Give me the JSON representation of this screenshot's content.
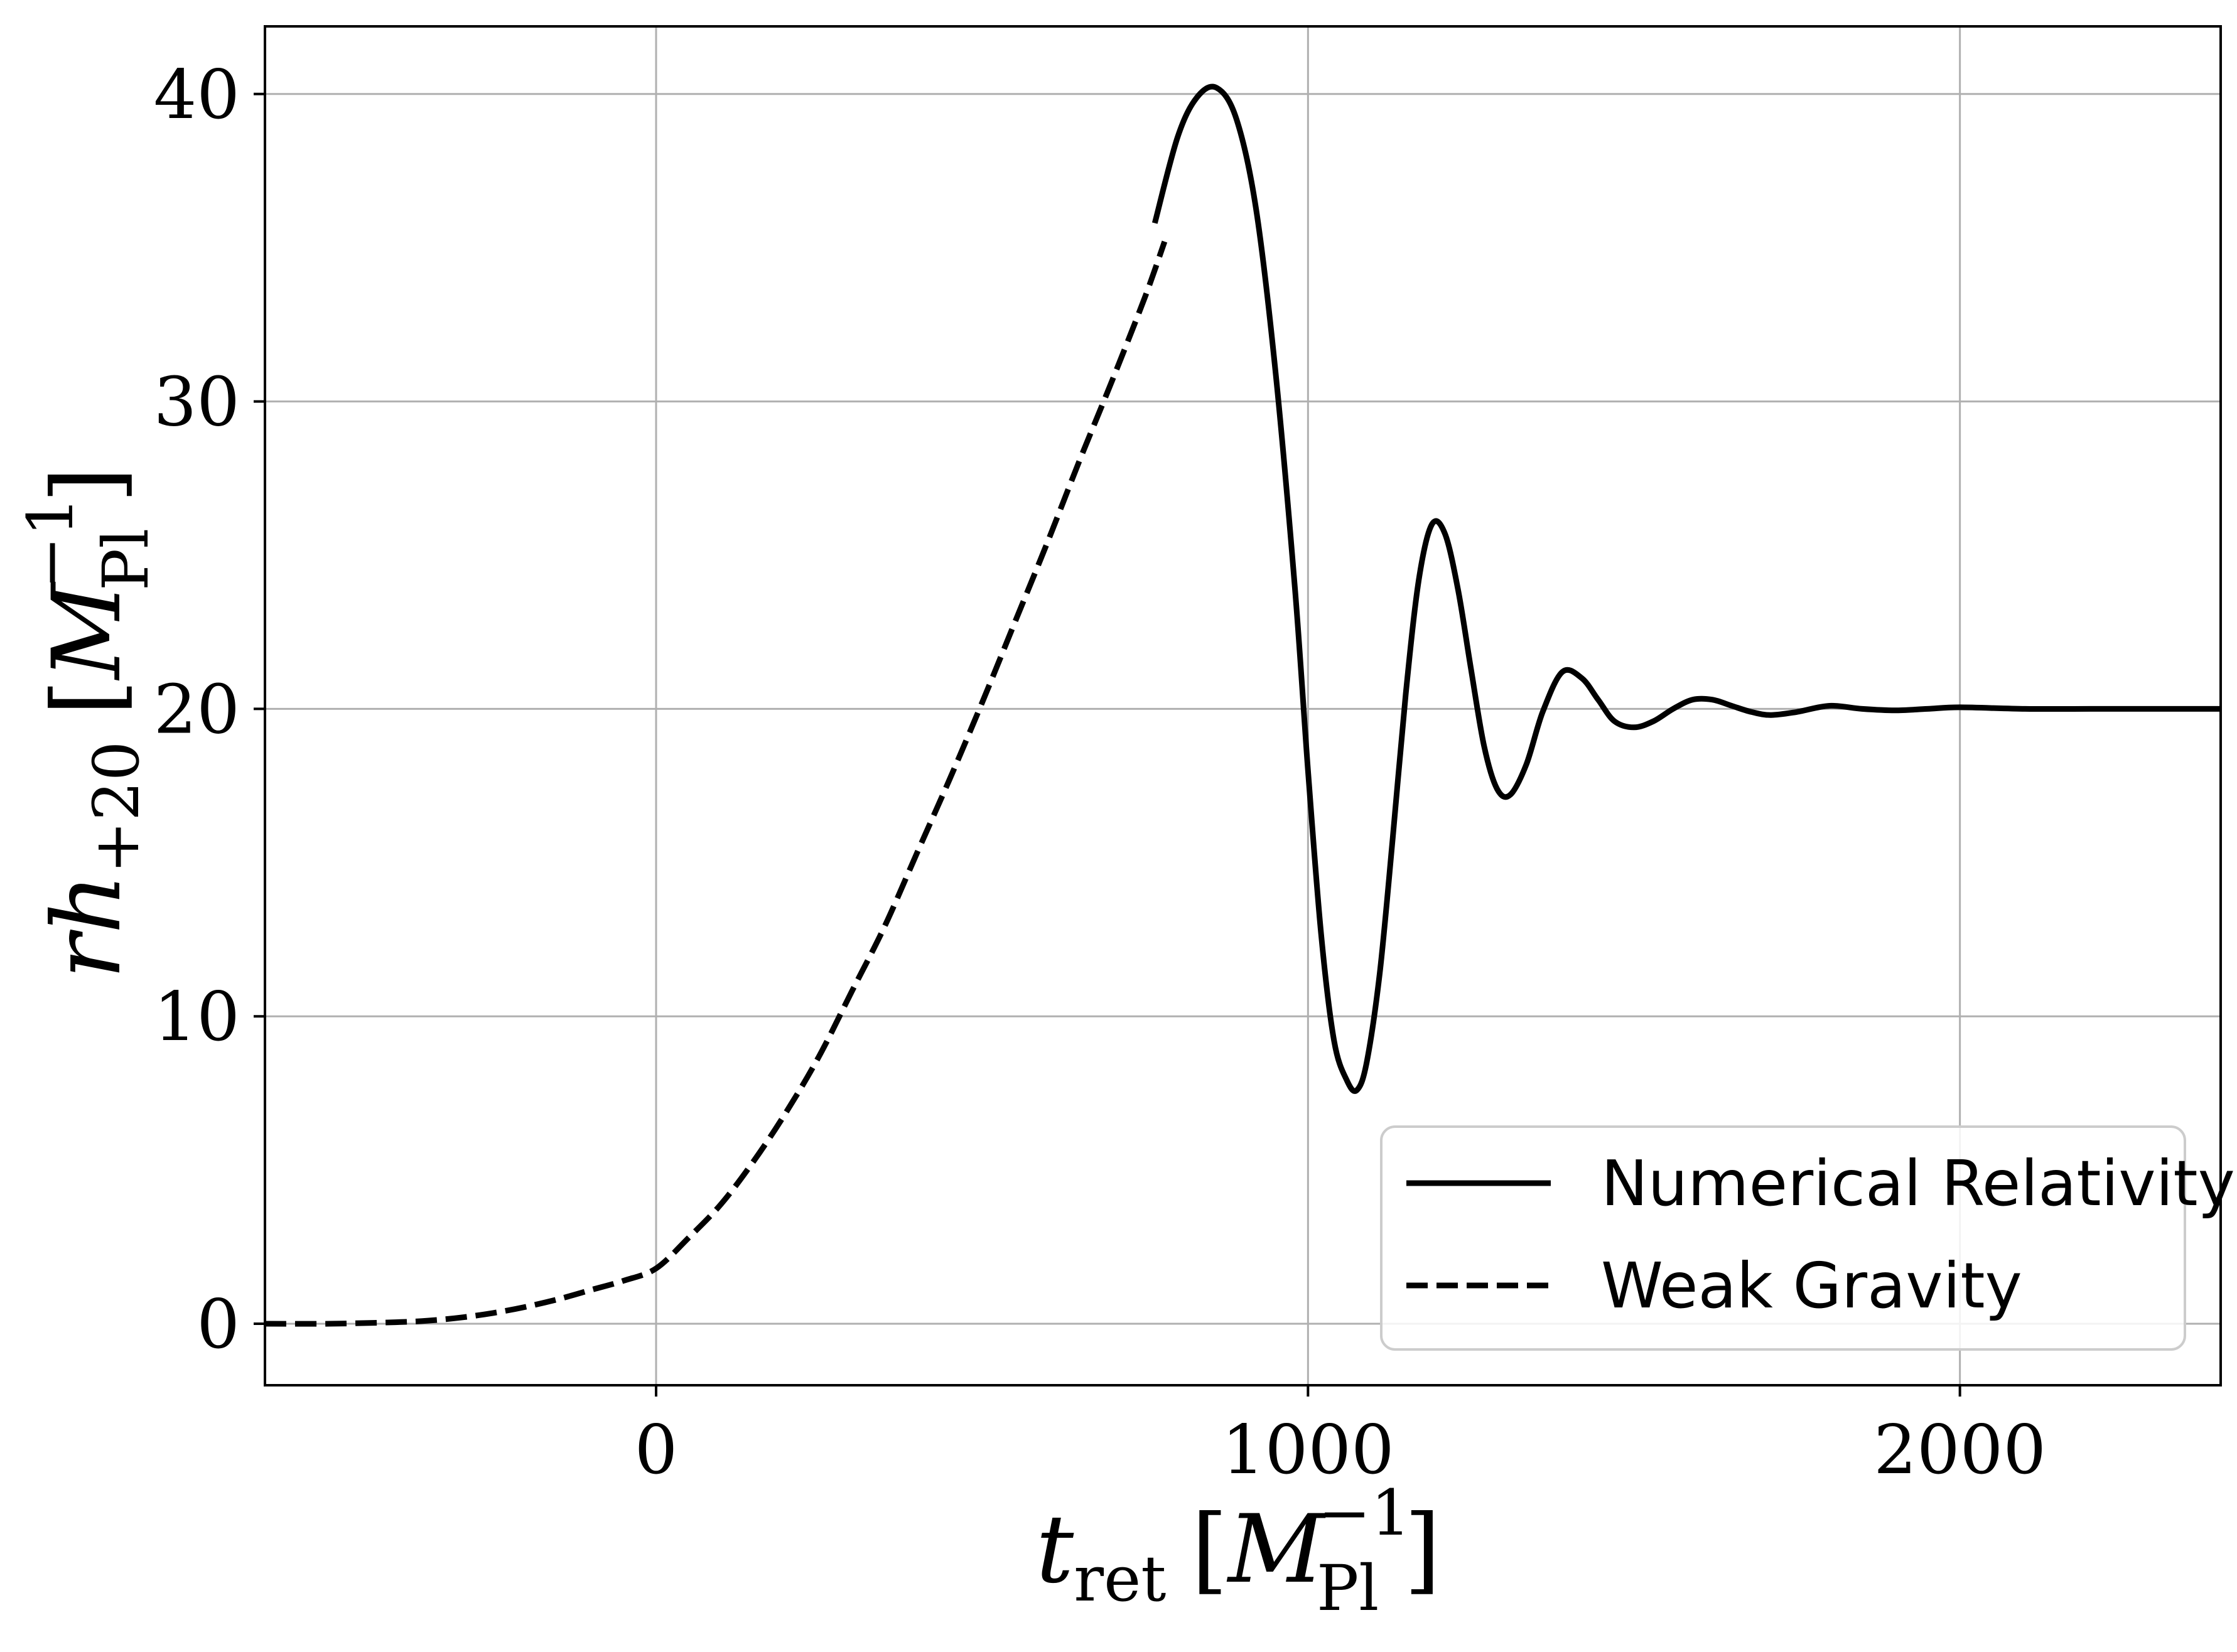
{
  "chart_data": {
    "type": "line",
    "xlabel": {
      "main": "t",
      "sub": "ret",
      "unit_open": "[",
      "unit_var": "M",
      "unit_sub": "Pl",
      "unit_sup": "−1",
      "unit_close": "]"
    },
    "ylabel": {
      "main": "rh",
      "sub": "+20",
      "unit_open": "[",
      "unit_var": "M",
      "unit_sub": "Pl",
      "unit_sup": "−1",
      "unit_close": "]"
    },
    "xlim": [
      -600,
      2400
    ],
    "ylim": [
      -2,
      42.2
    ],
    "x_ticks": [
      0,
      1000,
      2000
    ],
    "x_tick_labels": [
      "0",
      "1000",
      "2000"
    ],
    "y_ticks": [
      0,
      10,
      20,
      30,
      40
    ],
    "y_tick_labels": [
      "0",
      "10",
      "20",
      "30",
      "40"
    ],
    "grid": true,
    "legend_position": "lower-right",
    "series": [
      {
        "name": "Numerical Relativity",
        "style": "solid",
        "color": "#000000",
        "x": [
          765,
          800,
          830,
          860,
          890,
          920,
          950,
          980,
          1000,
          1020,
          1040,
          1060,
          1075,
          1090,
          1110,
          1130,
          1150,
          1170,
          1190,
          1210,
          1230,
          1250,
          1270,
          1290,
          1310,
          1335,
          1360,
          1390,
          1420,
          1445,
          1470,
          1500,
          1530,
          1560,
          1590,
          1620,
          1650,
          1680,
          1710,
          1750,
          1800,
          1850,
          1900,
          1950,
          2000,
          2100,
          2200,
          2300,
          2400
        ],
        "y": [
          35.8,
          38.6,
          39.9,
          40.2,
          39.2,
          36.3,
          31.0,
          23.9,
          18.0,
          12.7,
          9.2,
          7.9,
          7.6,
          8.5,
          11.4,
          15.8,
          20.5,
          24.2,
          26.0,
          25.7,
          23.9,
          21.3,
          18.8,
          17.4,
          17.2,
          18.2,
          19.9,
          21.2,
          21.0,
          20.3,
          19.6,
          19.4,
          19.6,
          20.0,
          20.3,
          20.3,
          20.1,
          19.9,
          19.8,
          19.9,
          20.1,
          20.0,
          19.95,
          20.0,
          20.05,
          20.0,
          20.0,
          20.0,
          20.0
        ]
      },
      {
        "name": "Weak Gravity",
        "style": "dashed",
        "color": "#000000",
        "x": [
          -600,
          -500,
          -400,
          -350,
          -300,
          -250,
          -200,
          -150,
          -100,
          -50,
          0,
          50,
          100,
          150,
          200,
          250,
          300,
          350,
          400,
          450,
          500,
          550,
          600,
          650,
          700,
          750,
          780
        ],
        "y": [
          0.0,
          0.0,
          0.05,
          0.1,
          0.2,
          0.35,
          0.55,
          0.8,
          1.1,
          1.4,
          1.8,
          2.8,
          3.9,
          5.3,
          6.9,
          8.7,
          10.8,
          12.9,
          15.3,
          17.7,
          20.2,
          22.8,
          25.4,
          28.1,
          30.7,
          33.4,
          35.2
        ]
      }
    ]
  }
}
